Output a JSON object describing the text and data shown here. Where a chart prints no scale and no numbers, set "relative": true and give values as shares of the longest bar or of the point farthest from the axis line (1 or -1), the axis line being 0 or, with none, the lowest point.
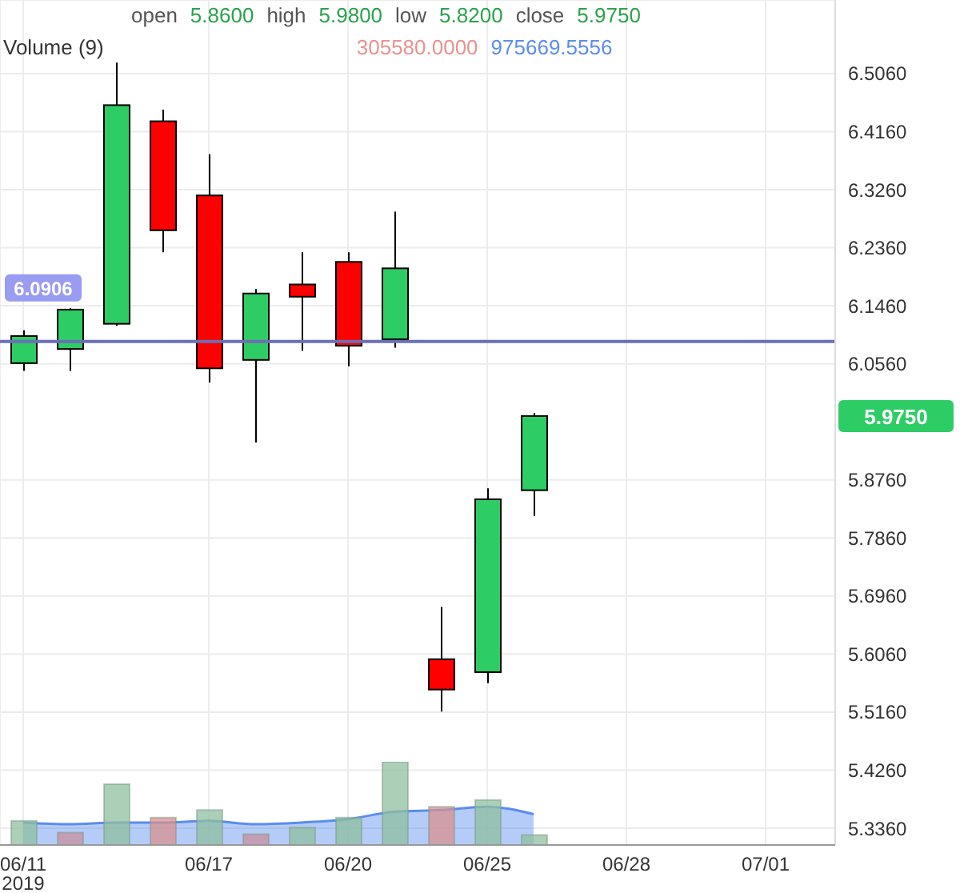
{
  "chart_data": [
    {
      "type": "candlestick",
      "categories": [
        "06/11 2019",
        null,
        null,
        null,
        "06/17",
        null,
        null,
        "06/20",
        null,
        null,
        "06/25",
        null,
        null,
        "06/28",
        null,
        null,
        "07/01",
        null
      ],
      "ohlc": [
        [
          6.057,
          6.108,
          6.045,
          6.099
        ],
        [
          6.079,
          6.142,
          6.045,
          6.14
        ],
        [
          6.118,
          6.523,
          6.115,
          6.457
        ],
        [
          6.432,
          6.45,
          6.229,
          6.263
        ],
        [
          6.317,
          6.381,
          6.027,
          6.049
        ],
        [
          6.062,
          6.172,
          5.934,
          6.165
        ],
        [
          6.179,
          6.229,
          6.076,
          6.16
        ],
        [
          6.214,
          6.229,
          6.052,
          6.084
        ],
        [
          6.094,
          6.292,
          6.081,
          6.204
        ],
        [
          5.598,
          5.679,
          5.517,
          5.551
        ],
        [
          5.578,
          5.863,
          5.561,
          5.846
        ],
        [
          5.86,
          5.98,
          5.82,
          5.975
        ],
        null,
        null,
        null,
        null,
        null,
        null
      ],
      "colors": [
        "#2ecc65",
        "#2ecc65",
        "#2ecc65",
        "#ff0000",
        "#ff0000",
        "#2ecc65",
        "#ff0000",
        "#ff0000",
        "#2ecc65",
        "#ff0000",
        "#2ecc65",
        "#2ecc65",
        null,
        null,
        null,
        null,
        null,
        null
      ],
      "ylim": [
        5.31,
        6.62
      ],
      "yticks": [
        {
          "value": 5.336,
          "label": "5.3360"
        },
        {
          "value": 5.426,
          "label": "5.4260"
        },
        {
          "value": 5.516,
          "label": "5.5160"
        },
        {
          "value": 5.606,
          "label": "5.6060"
        },
        {
          "value": 5.696,
          "label": "5.6960"
        },
        {
          "value": 5.786,
          "label": "5.7860"
        },
        {
          "value": 5.876,
          "label": "5.8760"
        },
        {
          "value": 6.056,
          "label": "6.0560"
        },
        {
          "value": 6.146,
          "label": "6.1460"
        },
        {
          "value": 6.236,
          "label": "6.2360"
        },
        {
          "value": 6.326,
          "label": "6.3260"
        },
        {
          "value": 6.416,
          "label": "6.4160"
        },
        {
          "value": 6.506,
          "label": "6.5060"
        }
      ],
      "grid": true,
      "ref_lines": [
        {
          "axis": "y",
          "value": 6.0906,
          "label": "6.0906",
          "color": "#6b6fb5"
        }
      ],
      "annotations": [
        "open",
        "5.8600",
        "high",
        "5.9800",
        "low",
        "5.8200",
        "close",
        "5.9750",
        "5.9750"
      ]
    },
    {
      "type": "bar",
      "relative": true,
      "categories": [
        null,
        null,
        null,
        null,
        null,
        null,
        null,
        null,
        null,
        null,
        null,
        null,
        null,
        null,
        null,
        null,
        null,
        null
      ],
      "series": [
        {
          "type": "bar",
          "colors": [
            "#8fbf9f",
            "#c98f9f",
            "#8fbf9f",
            "#d89090",
            "#8fbf9f",
            "#c98f9f",
            "#8fbf9f",
            "#8fbf9f",
            "#8fbf9f",
            "#d89090",
            "#8fbf9f",
            "#8fbf9f",
            null,
            null,
            null,
            null,
            null,
            null
          ],
          "values": [
            0.29,
            0.15,
            0.73,
            0.33,
            0.42,
            0.13,
            0.21,
            0.33,
            1,
            0.46,
            0.54,
            0.12,
            null,
            null,
            null,
            null,
            null,
            null
          ]
        },
        {
          "type": "area",
          "color": "#5b8def",
          "values": [
            0.27,
            0.25,
            0.27,
            0.27,
            0.29,
            0.25,
            0.27,
            0.31,
            0.4,
            0.42,
            0.46,
            0.37,
            null,
            null,
            null,
            null,
            null,
            null
          ]
        }
      ],
      "annotations": [
        "Volume (9)",
        "305580.0000",
        "975669.5556"
      ]
    }
  ]
}
